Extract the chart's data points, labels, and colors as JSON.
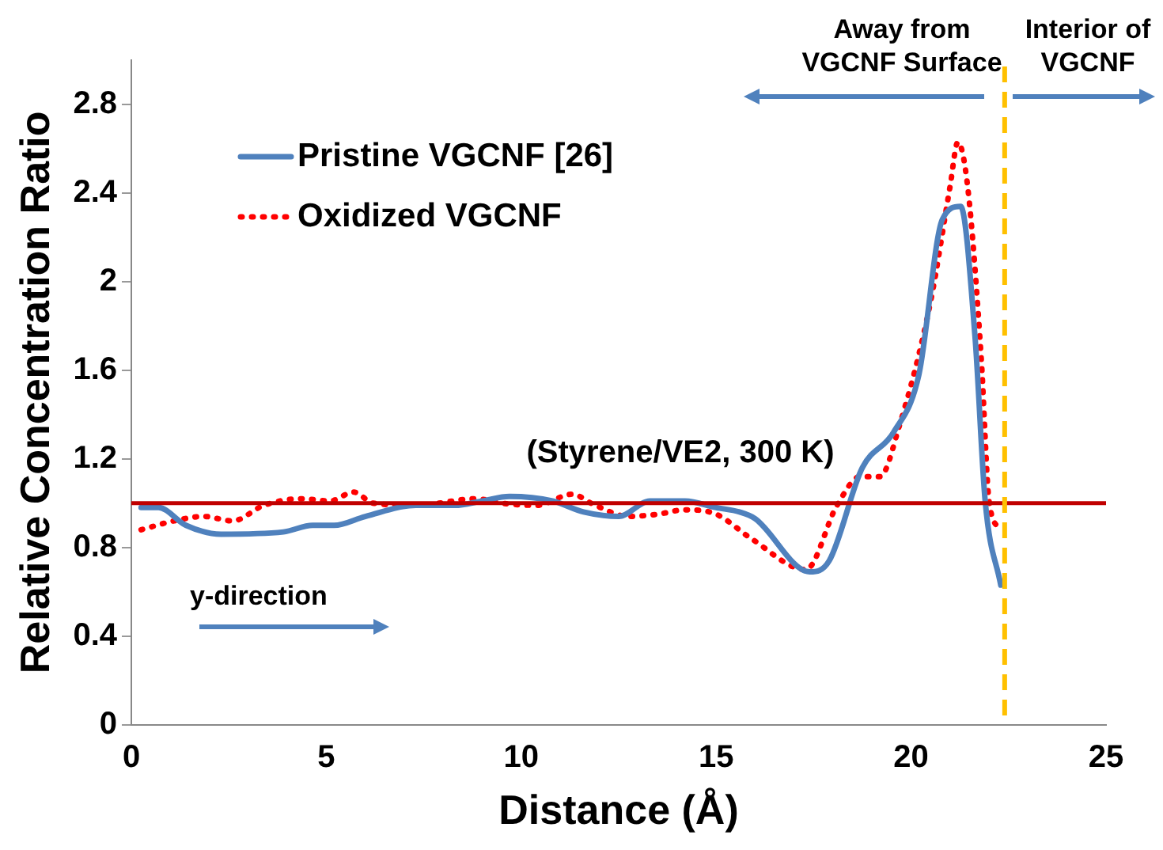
{
  "chart_data": {
    "type": "line",
    "xlabel": "Distance (Å)",
    "ylabel": "Relative Concentration Ratio",
    "xlim": [
      0,
      25
    ],
    "xticks": [
      0,
      5,
      10,
      15,
      20,
      25
    ],
    "ylim": [
      0,
      3
    ],
    "yticks": [
      0,
      0.4,
      0.8,
      1.2,
      1.6,
      2,
      2.4,
      2.8
    ],
    "grid": false,
    "legend": "top left",
    "marker": "none",
    "series": [
      {
        "name": "Pristine VGCNF [26]",
        "color": "#4f81bd",
        "line_style": "solid",
        "x": [
          0.25,
          0.7,
          1.4,
          2.3,
          3.9,
          4.65,
          5.2,
          6.0,
          7.3,
          8.3,
          9.0,
          9.7,
          10.8,
          11.6,
          12.5,
          13.3,
          14.2,
          15.0,
          15.6,
          16.0,
          17.4,
          17.9,
          18.75,
          19.55,
          20.2,
          20.8,
          21.27,
          21.64,
          21.9,
          22.3
        ],
        "values": [
          0.98,
          0.98,
          0.9,
          0.86,
          0.87,
          0.9,
          0.9,
          0.94,
          0.99,
          0.99,
          1.01,
          1.03,
          1.01,
          0.96,
          0.94,
          1.01,
          1.01,
          0.98,
          0.96,
          0.93,
          0.69,
          0.74,
          1.16,
          1.32,
          1.58,
          2.28,
          2.34,
          1.75,
          1.01,
          0.63
        ]
      },
      {
        "name": "Oxidized VGCNF",
        "color": "#ff0000",
        "line_style": "dotted",
        "x": [
          0.25,
          1.1,
          1.85,
          2.6,
          3.4,
          4.35,
          5.1,
          5.7,
          6.2,
          7.3,
          8.85,
          9.5,
          10.4,
          11.3,
          11.9,
          12.75,
          13.5,
          14.2,
          15.0,
          15.9,
          17.3,
          18.1,
          18.7,
          19.2,
          19.7,
          20.5,
          21.0,
          21.2,
          21.45,
          21.8,
          22.0,
          22.3
        ],
        "values": [
          0.88,
          0.92,
          0.94,
          0.92,
          0.99,
          1.02,
          1.01,
          1.05,
          1.0,
          0.99,
          1.02,
          1.0,
          0.99,
          1.04,
          0.99,
          0.94,
          0.95,
          0.97,
          0.95,
          0.84,
          0.7,
          0.99,
          1.12,
          1.12,
          1.35,
          1.91,
          2.43,
          2.63,
          2.43,
          1.65,
          1.01,
          0.88
        ]
      }
    ],
    "ref_lines": [
      {
        "axis": "y",
        "value": 1,
        "label": null,
        "color": "#c00000",
        "line_style": "solid"
      },
      {
        "axis": "x",
        "value": 22.4,
        "label": null,
        "color": "#ffc000",
        "line_style": "dashed"
      }
    ],
    "annotations": [
      "(Styrene/VE2, 300 K)",
      "Away from VGCNF Surface",
      "Interior of VGCNF",
      "y-direction"
    ]
  }
}
